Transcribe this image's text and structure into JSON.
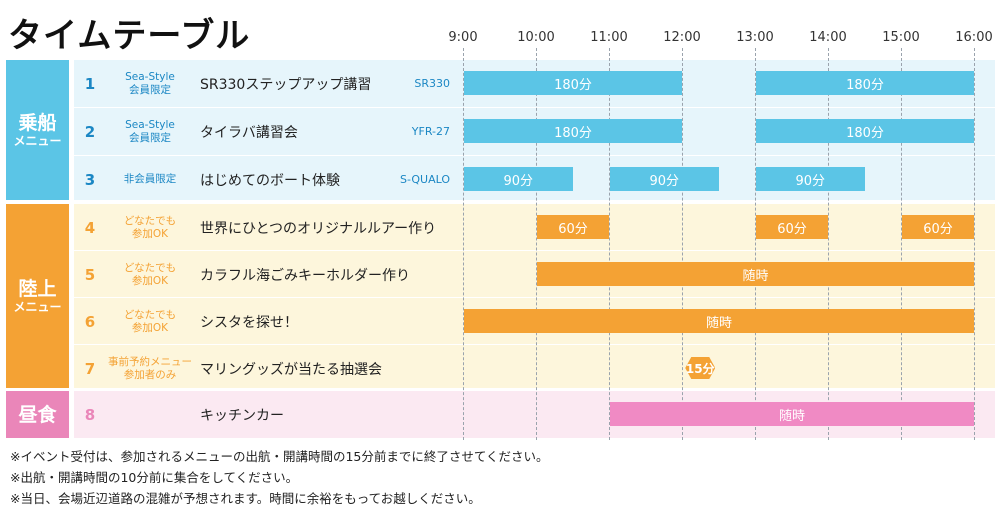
{
  "title": "タイムテーブル",
  "times": [
    "9:00",
    "10:00",
    "11:00",
    "12:00",
    "13:00",
    "14:00",
    "15:00",
    "16:00"
  ],
  "categories": [
    {
      "label": "乗船",
      "sub": "メニュー"
    },
    {
      "label": "陸上",
      "sub": "メニュー"
    },
    {
      "label": "昼食",
      "sub": ""
    }
  ],
  "rows": [
    {
      "num": "1",
      "tag": [
        "Sea-Style",
        "会員限定"
      ],
      "name": "SR330ステップアップ講習",
      "boat": "SR330",
      "slots": [
        {
          "start": "9:00",
          "end": "12:00",
          "label": "180分"
        },
        {
          "start": "13:00",
          "end": "16:00",
          "label": "180分"
        }
      ]
    },
    {
      "num": "2",
      "tag": [
        "Sea-Style",
        "会員限定"
      ],
      "name": "タイラバ講習会",
      "boat": "YFR-27",
      "slots": [
        {
          "start": "9:00",
          "end": "12:00",
          "label": "180分"
        },
        {
          "start": "13:00",
          "end": "16:00",
          "label": "180分"
        }
      ]
    },
    {
      "num": "3",
      "tag": [
        "非会員限定"
      ],
      "name": "はじめてのボート体験",
      "boat": "S-QUALO",
      "slots": [
        {
          "start": "9:00",
          "end": "10:30",
          "label": "90分"
        },
        {
          "start": "11:00",
          "end": "12:30",
          "label": "90分"
        },
        {
          "start": "13:00",
          "end": "14:30",
          "label": "90分"
        }
      ]
    },
    {
      "num": "4",
      "tag": [
        "どなたでも",
        "参加OK"
      ],
      "name": "世界にひとつのオリジナルルアー作り",
      "boat": "",
      "slots": [
        {
          "start": "10:00",
          "end": "11:00",
          "label": "60分"
        },
        {
          "start": "13:00",
          "end": "14:00",
          "label": "60分"
        },
        {
          "start": "15:00",
          "end": "16:00",
          "label": "60分"
        }
      ]
    },
    {
      "num": "5",
      "tag": [
        "どなたでも",
        "参加OK"
      ],
      "name": "カラフル海ごみキーホルダー作り",
      "boat": "",
      "slots": [
        {
          "start": "10:00",
          "end": "16:00",
          "label": "随時"
        }
      ]
    },
    {
      "num": "6",
      "tag": [
        "どなたでも",
        "参加OK"
      ],
      "name": "シスタを探せ！",
      "boat": "",
      "slots": [
        {
          "start": "9:00",
          "end": "16:00",
          "label": "随時"
        }
      ]
    },
    {
      "num": "7",
      "tag": [
        "事前予約メニュー",
        "参加者のみ"
      ],
      "name": "マリングッズが当たる抽選会",
      "boat": "",
      "badge": {
        "time": "12:15",
        "label": "15分"
      },
      "slots": []
    },
    {
      "num": "8",
      "tag": [],
      "name": "キッチンカー",
      "boat": "",
      "slots": [
        {
          "start": "11:00",
          "end": "16:00",
          "label": "随時"
        }
      ]
    }
  ],
  "notes": [
    "※イベント受付は、参加されるメニューの出航・開講時間の15分前までに終了させてください。",
    "※出航・開講時間の10分前に集合をしてください。",
    "※当日、会場近辺道路の混雑が予想されます。時間に余裕をもってお越しください。"
  ],
  "colors": {
    "boat_cat": "#5bc5e6",
    "boat_band": "#e6f5fb",
    "boat_bar": "#5bc5e6",
    "boat_text": "#1b87c4",
    "land_cat": "#f4a234",
    "land_band": "#fdf6dc",
    "land_bar": "#f4a234",
    "land_text": "#f4a234",
    "lunch_cat": "#ea86b9",
    "lunch_band": "#fbe9f2",
    "lunch_bar": "#f08ac4",
    "lunch_text": "#ea86b9"
  }
}
